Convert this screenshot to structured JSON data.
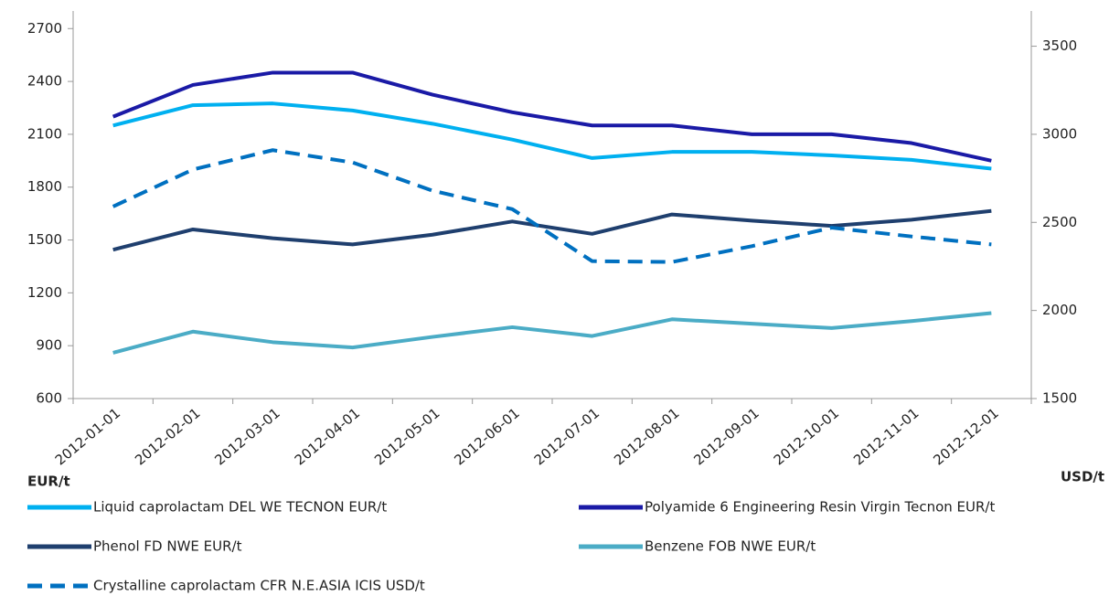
{
  "chart_data": {
    "type": "line",
    "categories": [
      "2012-01-01",
      "2012-02-01",
      "2012-03-01",
      "2012-04-01",
      "2012-05-01",
      "2012-06-01",
      "2012-07-01",
      "2012-08-01",
      "2012-09-01",
      "2012-10-01",
      "2012-11-01",
      "2012-12-01"
    ],
    "series": [
      {
        "name": "Liquid caprolactam DEL WE TECNON EUR/t",
        "color": "#00b0f0",
        "values": [
          2150,
          2265,
          2275,
          2235,
          2160,
          2070,
          1965,
          2000,
          2000,
          1980,
          1955,
          1905
        ]
      },
      {
        "name": "Polyamide 6 Engineering Resin Virgin Tecnon  EUR/t",
        "color": "#1a1aa6",
        "values": [
          2200,
          2380,
          2450,
          2450,
          2325,
          2225,
          2150,
          2150,
          2100,
          2100,
          2050,
          1950
        ]
      },
      {
        "name": "Phenol FD NWE EUR/t",
        "color": "#1f3f6e",
        "values": [
          1445,
          1560,
          1510,
          1475,
          1530,
          1605,
          1535,
          1645,
          1610,
          1580,
          1615,
          1665
        ]
      },
      {
        "name": "Benzene FOB NWE EUR/t",
        "color": "#4bacc6",
        "values": [
          860,
          980,
          920,
          890,
          950,
          1005,
          955,
          1050,
          1025,
          1000,
          1040,
          1085
        ]
      },
      {
        "name": "Crystalline caprolactam CFR N.E.ASIA ICIS USD/t",
        "color": "#0070c0",
        "dashed": true,
        "axis": "y2",
        "values": [
          2590,
          2800,
          2910,
          2840,
          2680,
          2575,
          2280,
          2275,
          2365,
          2470,
          2420,
          2375
        ]
      }
    ],
    "ylabel": "EUR/t",
    "y2label": "USD/t",
    "ylim": [
      600,
      2800
    ],
    "yticks": [
      600,
      900,
      1200,
      1500,
      1800,
      2100,
      2400,
      2700
    ],
    "y2lim": [
      1500,
      3700
    ],
    "y2ticks": [
      1500,
      2000,
      2500,
      3000,
      3500
    ],
    "grid": false,
    "legend": "bottom"
  }
}
